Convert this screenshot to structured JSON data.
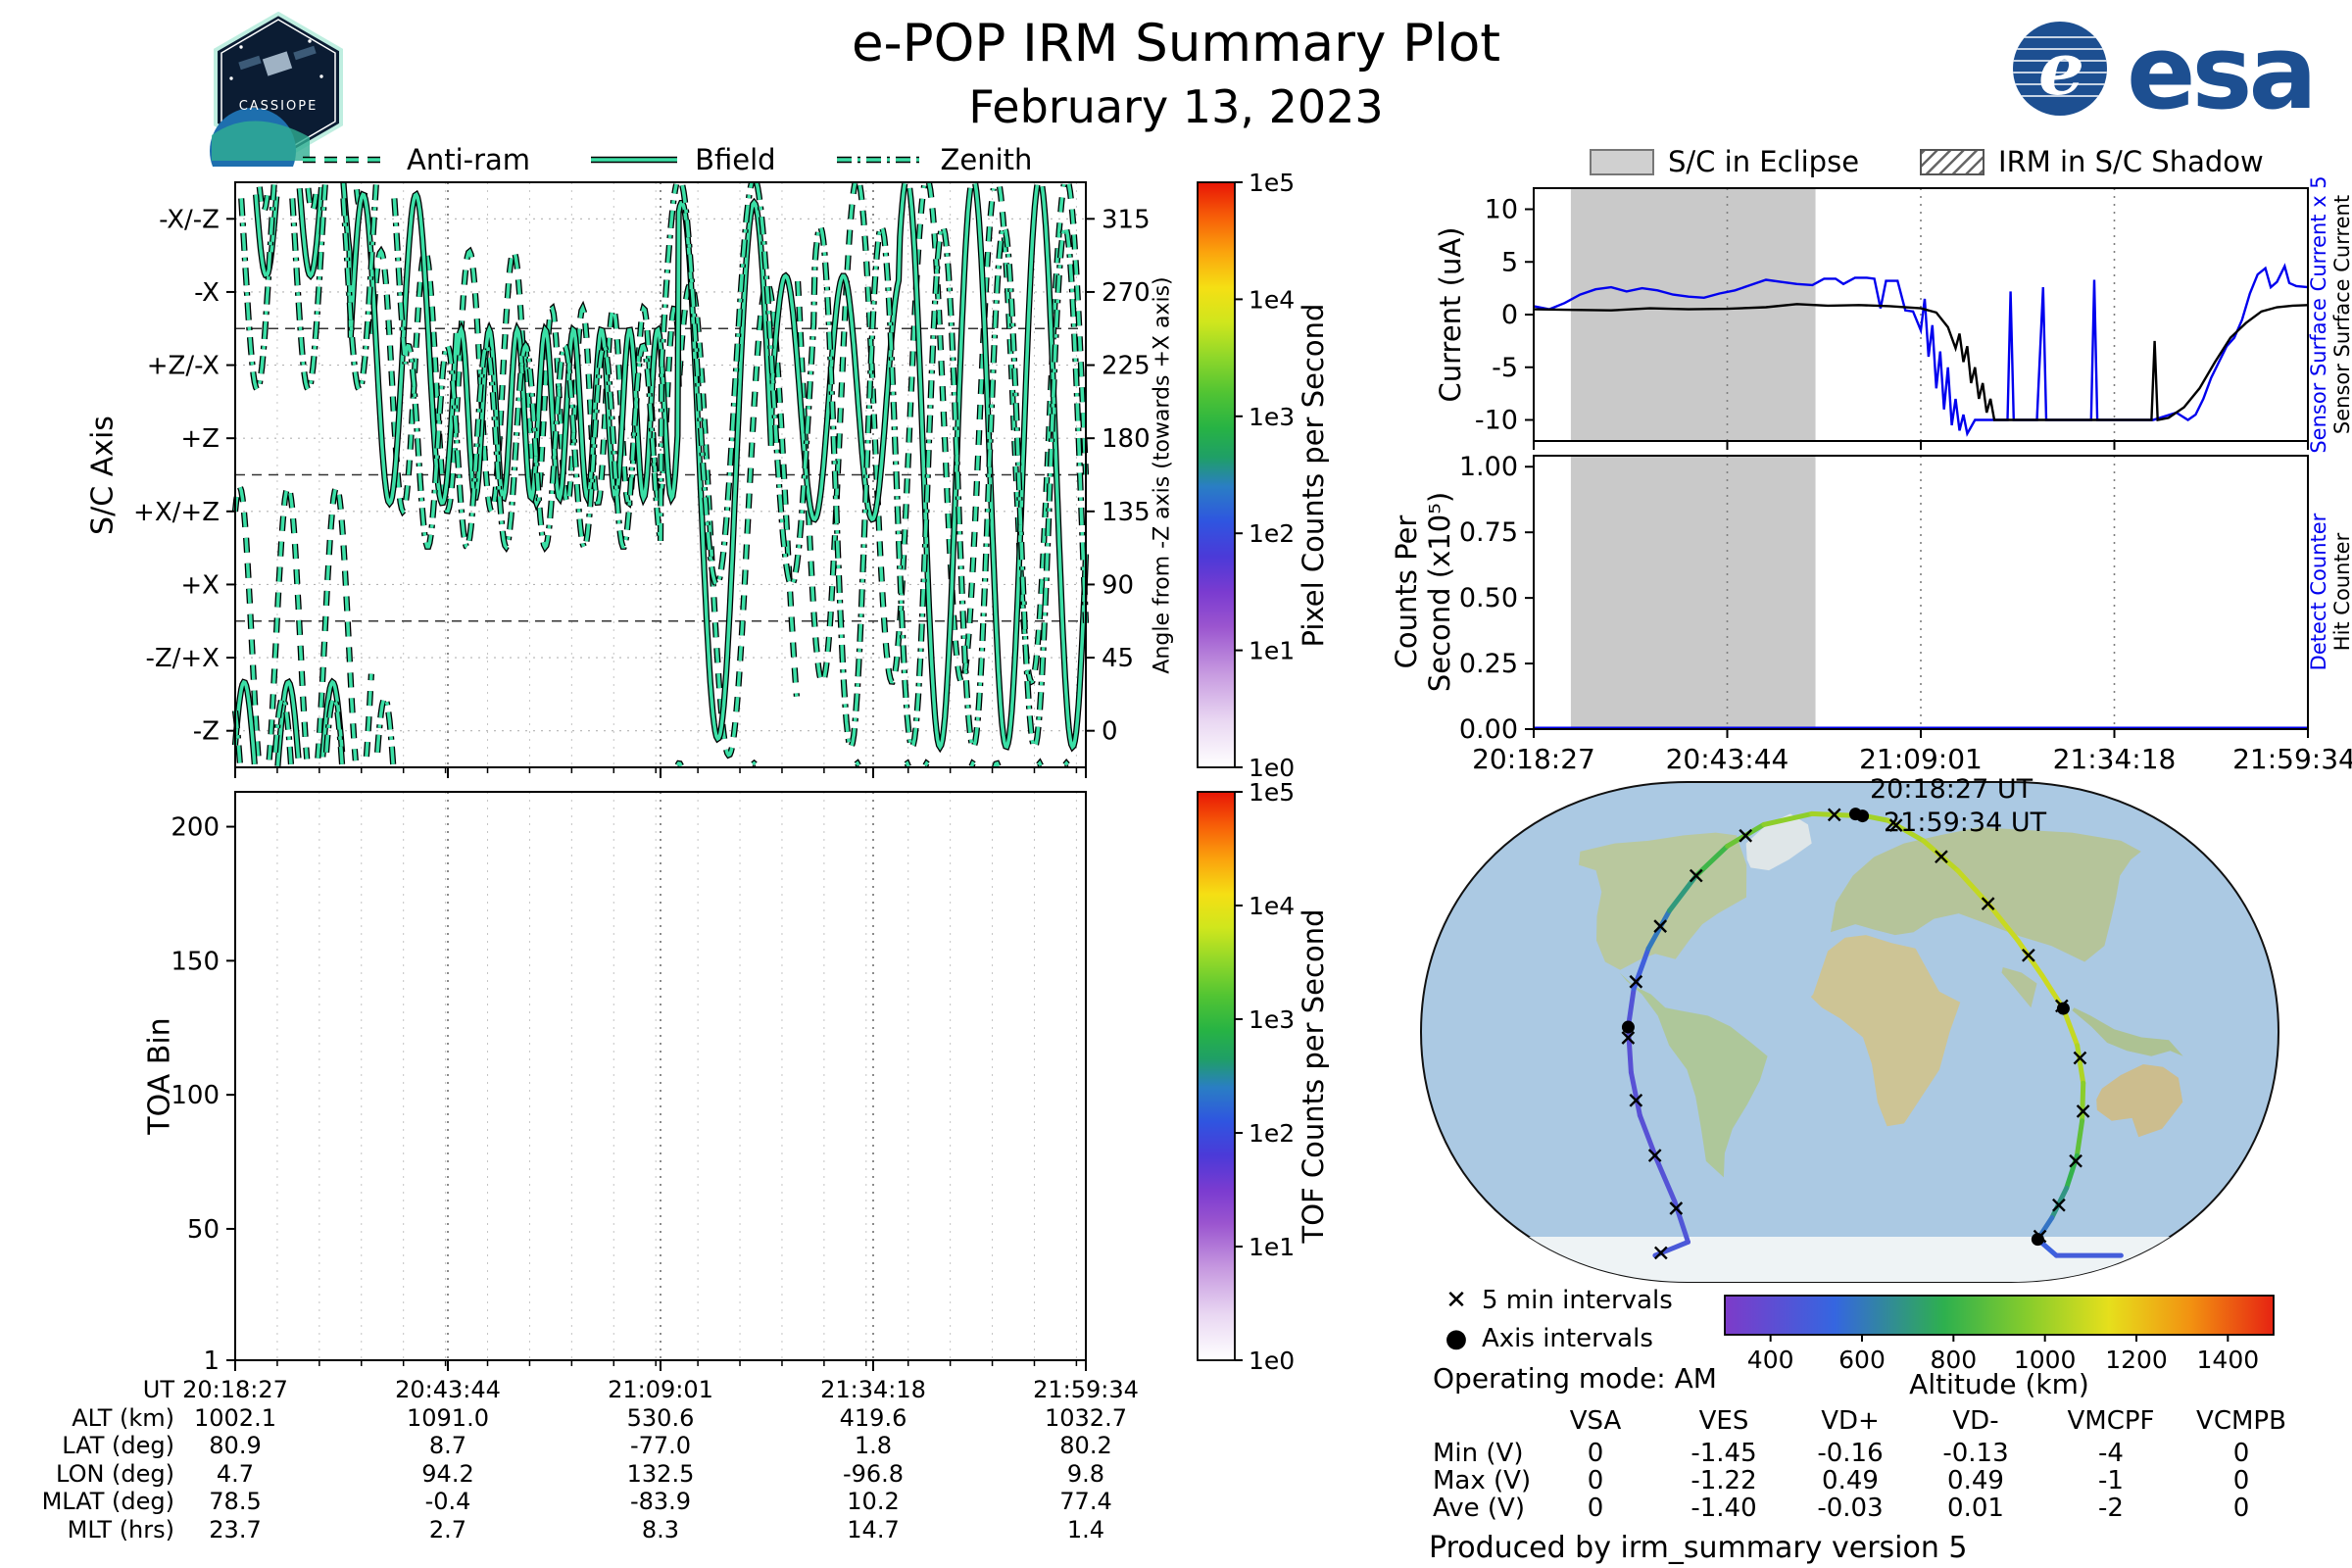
{
  "header": {
    "title": "e-POP IRM Summary Plot",
    "date": "February 13, 2023",
    "esa_wordmark": "esa",
    "badge_text": "CASSIOPE"
  },
  "icons": {
    "x_marker": "✕",
    "dot_marker": "●"
  },
  "timeline": {
    "xticks": [
      "20:18:27",
      "20:43:44",
      "21:09:01",
      "21:34:18",
      "21:59:34"
    ],
    "five_min_frac": 0.049447
  },
  "eclipse_legend": {
    "eclipse_label": "S/C in Eclipse",
    "shadow_label": "IRM in S/C Shadow"
  },
  "colorbars": {
    "pixel_label": "Pixel Counts per Second",
    "tof_label": "TOF Counts per Second",
    "ticks": [
      "1e5",
      "1e4",
      "1e3",
      "1e2",
      "1e1",
      "1e0"
    ]
  },
  "chart_data": [
    {
      "id": "sc_axis_attitude",
      "type": "line",
      "ylabel": "S/C Axis",
      "yticks": [
        "-X/-Z",
        "-X",
        "+Z/-X",
        "+Z",
        "+X/+Z",
        "+X",
        "-Z/+X",
        "-Z"
      ],
      "right_label": "Angle from -Z axis (towards +X axis)",
      "right_ticks": [
        315,
        270,
        225,
        180,
        135,
        90,
        45,
        0
      ],
      "ylim": [
        -22.5,
        337.5
      ],
      "xticks": [
        "20:18:27",
        "20:43:44",
        "21:09:01",
        "21:34:18",
        "21:59:34"
      ],
      "line_color": "#3bdfa6",
      "legend": [
        {
          "label": "Anti-ram",
          "style": "dashed"
        },
        {
          "label": "Bfield",
          "style": "solid"
        },
        {
          "label": "Zenith",
          "style": "dashdot"
        }
      ],
      "series": [
        {
          "name": "Anti-ram",
          "style": "dashed",
          "segments": [
            [
              0,
              0.16,
              55,
              95,
              0.057,
              1.0
            ],
            [
              0.16,
              0.34,
              215,
              80,
              0.052,
              0.2
            ],
            [
              0.34,
              0.52,
              200,
              60,
              0.036,
              2.2
            ],
            [
              0.52,
              0.66,
              130,
              145,
              0.09,
              0.5
            ],
            [
              0.66,
              1.0,
              185,
              155,
              0.082,
              2.4
            ]
          ]
        },
        {
          "name": "Bfield",
          "style": "solid",
          "segments": [
            [
              0,
              0.135,
              335,
              55,
              0.052,
              0.3
            ],
            [
              0.135,
              0.26,
              235,
              95,
              0.062,
              0
            ],
            [
              0.26,
              0.52,
              195,
              52,
              0.033,
              0.5
            ],
            [
              0.52,
              0.63,
              160,
              165,
              0.085,
              1.2
            ],
            [
              0.63,
              0.78,
              205,
              75,
              0.068,
              0
            ],
            [
              0.78,
              1.0,
              165,
              175,
              0.078,
              0.8
            ]
          ]
        },
        {
          "name": "Zenith",
          "style": "dashdot",
          "segments": [
            [
              0,
              0.2,
              295,
              85,
              0.06,
              2.0
            ],
            [
              0.2,
              0.5,
              175,
              62,
              0.046,
              1.1
            ],
            [
              0.5,
              0.68,
              215,
              125,
              0.088,
              0
            ],
            [
              0.68,
              1.0,
              150,
              160,
              0.072,
              0.9
            ]
          ]
        }
      ]
    },
    {
      "id": "toa_bin",
      "type": "heatmap",
      "ylabel": "TOA Bin",
      "yticks": [
        200,
        150,
        100,
        50,
        1
      ],
      "ylim": [
        1,
        213
      ],
      "values": "empty"
    },
    {
      "id": "sensor_current",
      "type": "line",
      "ylabel": "Current (uA)",
      "yticks": [
        10,
        5,
        0,
        -5,
        -10
      ],
      "ylim": [
        -12,
        12
      ],
      "right_labels": {
        "blue": "Sensor Surface Current x 5",
        "black": "Sensor Surface Current"
      },
      "eclipse_span": [
        0.048,
        0.364
      ],
      "series": [
        {
          "name": "Sensor Surface Current x 5",
          "color": "#0000ee",
          "points": [
            [
              0,
              0.8
            ],
            [
              0.02,
              0.5
            ],
            [
              0.04,
              1.1
            ],
            [
              0.06,
              1.9
            ],
            [
              0.08,
              2.4
            ],
            [
              0.1,
              2.6
            ],
            [
              0.12,
              2.2
            ],
            [
              0.14,
              2.5
            ],
            [
              0.16,
              2.3
            ],
            [
              0.18,
              1.9
            ],
            [
              0.2,
              1.7
            ],
            [
              0.22,
              1.6
            ],
            [
              0.24,
              2
            ],
            [
              0.26,
              2.3
            ],
            [
              0.28,
              2.8
            ],
            [
              0.3,
              3.3
            ],
            [
              0.32,
              3.1
            ],
            [
              0.34,
              2.9
            ],
            [
              0.36,
              2.8
            ],
            [
              0.375,
              3.4
            ],
            [
              0.39,
              3.4
            ],
            [
              0.4,
              2.9
            ],
            [
              0.415,
              3.5
            ],
            [
              0.43,
              3.5
            ],
            [
              0.44,
              3.4
            ],
            [
              0.448,
              0.6
            ],
            [
              0.455,
              3.2
            ],
            [
              0.47,
              3.2
            ],
            [
              0.48,
              0.4
            ],
            [
              0.49,
              0.3
            ],
            [
              0.5,
              -1.5
            ],
            [
              0.505,
              1.5
            ],
            [
              0.51,
              -4
            ],
            [
              0.515,
              -1
            ],
            [
              0.52,
              -7
            ],
            [
              0.525,
              -3.5
            ],
            [
              0.53,
              -9
            ],
            [
              0.535,
              -5
            ],
            [
              0.54,
              -10.5
            ],
            [
              0.545,
              -8
            ],
            [
              0.55,
              -11
            ],
            [
              0.555,
              -9.5
            ],
            [
              0.56,
              -11.3
            ],
            [
              0.57,
              -10
            ],
            [
              0.6,
              -10
            ],
            [
              0.612,
              -10
            ],
            [
              0.616,
              2.2
            ],
            [
              0.62,
              -10
            ],
            [
              0.65,
              -10
            ],
            [
              0.658,
              2.6
            ],
            [
              0.662,
              -10
            ],
            [
              0.7,
              -10
            ],
            [
              0.72,
              -10
            ],
            [
              0.724,
              3.3
            ],
            [
              0.728,
              -10
            ],
            [
              0.76,
              -10
            ],
            [
              0.8,
              -10
            ],
            [
              0.83,
              -9.3
            ],
            [
              0.845,
              -10
            ],
            [
              0.855,
              -9.5
            ],
            [
              0.865,
              -8
            ],
            [
              0.875,
              -6
            ],
            [
              0.885,
              -4.5
            ],
            [
              0.895,
              -3
            ],
            [
              0.905,
              -2.2
            ],
            [
              0.915,
              -0.5
            ],
            [
              0.925,
              2
            ],
            [
              0.935,
              3.8
            ],
            [
              0.945,
              4.4
            ],
            [
              0.952,
              2.6
            ],
            [
              0.96,
              3.1
            ],
            [
              0.97,
              4.6
            ],
            [
              0.976,
              3
            ],
            [
              0.985,
              2.7
            ],
            [
              1,
              2.6
            ]
          ]
        },
        {
          "name": "Sensor Surface Current",
          "color": "#000000",
          "points": [
            [
              0,
              0.5
            ],
            [
              0.05,
              0.45
            ],
            [
              0.1,
              0.4
            ],
            [
              0.15,
              0.6
            ],
            [
              0.2,
              0.5
            ],
            [
              0.25,
              0.55
            ],
            [
              0.3,
              0.7
            ],
            [
              0.34,
              1
            ],
            [
              0.38,
              0.85
            ],
            [
              0.42,
              0.9
            ],
            [
              0.46,
              0.8
            ],
            [
              0.5,
              0.6
            ],
            [
              0.52,
              0.2
            ],
            [
              0.535,
              -1.2
            ],
            [
              0.545,
              -3.2
            ],
            [
              0.55,
              -1.8
            ],
            [
              0.555,
              -4.5
            ],
            [
              0.56,
              -3
            ],
            [
              0.565,
              -6.5
            ],
            [
              0.57,
              -5
            ],
            [
              0.575,
              -8
            ],
            [
              0.58,
              -6.5
            ],
            [
              0.585,
              -9.3
            ],
            [
              0.59,
              -8
            ],
            [
              0.595,
              -10
            ],
            [
              0.62,
              -10
            ],
            [
              0.66,
              -10
            ],
            [
              0.7,
              -10
            ],
            [
              0.74,
              -10
            ],
            [
              0.78,
              -10
            ],
            [
              0.798,
              -10
            ],
            [
              0.802,
              -2.5
            ],
            [
              0.806,
              -10
            ],
            [
              0.82,
              -9.8
            ],
            [
              0.84,
              -8.8
            ],
            [
              0.86,
              -7
            ],
            [
              0.88,
              -4.5
            ],
            [
              0.9,
              -2.2
            ],
            [
              0.92,
              -0.8
            ],
            [
              0.94,
              0.3
            ],
            [
              0.96,
              0.7
            ],
            [
              0.98,
              0.85
            ],
            [
              1,
              0.9
            ]
          ]
        }
      ]
    },
    {
      "id": "detect_hit_counters",
      "type": "line",
      "ylabel_line1": "Counts Per",
      "ylabel_line2": "Second (x10⁵)",
      "yticks": [
        "1.00",
        "0.75",
        "0.50",
        "0.25",
        "0.00"
      ],
      "ylim": [
        0,
        1.042
      ],
      "right_labels": {
        "blue": "Detect Counter",
        "black": "Hit Counter"
      },
      "eclipse_span": [
        0.048,
        0.364
      ],
      "series": [
        {
          "name": "Detect Counter",
          "color": "#0000ee",
          "points": [
            [
              0,
              0
            ],
            [
              1,
              0
            ]
          ]
        }
      ]
    },
    {
      "id": "ground_track",
      "type": "map",
      "start_label": "20:18:27 UT",
      "end_label": "21:59:34 UT",
      "operating_mode": "Operating mode: AM",
      "legend": {
        "x_label": "5 min intervals",
        "dot_label": "Axis intervals"
      },
      "alt_bar": {
        "label": "Altitude (km)",
        "ticks": [
          400,
          600,
          800,
          1000,
          1200,
          1400
        ],
        "range": [
          300,
          1500
        ]
      },
      "axis_dot_ts": [
        0,
        0.25,
        0.5,
        0.75,
        1
      ],
      "track": [
        [
          0,
          4.7,
          80.9,
          1002
        ],
        [
          0.04,
          28,
          78.5,
          1025
        ],
        [
          0.08,
          48,
          71,
          1050
        ],
        [
          0.115,
          62,
          60,
          1068
        ],
        [
          0.15,
          72,
          47,
          1080
        ],
        [
          0.185,
          80,
          34,
          1088
        ],
        [
          0.215,
          87,
          21,
          1092
        ],
        [
          0.25,
          94.2,
          8.7,
          1091
        ],
        [
          0.285,
          100,
          -5,
          1065
        ],
        [
          0.32,
          105,
          -19,
          1010
        ],
        [
          0.355,
          110,
          -33,
          930
        ],
        [
          0.39,
          116,
          -46,
          840
        ],
        [
          0.425,
          122,
          -58,
          745
        ],
        [
          0.46,
          128,
          -69,
          640
        ],
        [
          0.5,
          132.5,
          -77,
          531
        ],
        [
          0.52,
          160,
          -83,
          500
        ],
        [
          0.54,
          -150,
          -83,
          480
        ],
        [
          0.56,
          -115,
          -78,
          462
        ],
        [
          0.6,
          -103,
          -63,
          440
        ],
        [
          0.64,
          -99,
          -47,
          428
        ],
        [
          0.68,
          -98,
          -31,
          421
        ],
        [
          0.715,
          -97,
          -15,
          419
        ],
        [
          0.75,
          -96.8,
          1.8,
          420
        ],
        [
          0.785,
          -96,
          16,
          460
        ],
        [
          0.82,
          -94,
          31,
          545
        ],
        [
          0.855,
          -91,
          45,
          650
        ],
        [
          0.89,
          -86,
          58,
          760
        ],
        [
          0.925,
          -77,
          69,
          865
        ],
        [
          0.955,
          -60,
          77,
          950
        ],
        [
          0.98,
          -28,
          81,
          1000
        ],
        [
          1,
          9.8,
          80.2,
          1033
        ]
      ]
    }
  ],
  "ephemeris_table": {
    "rows": [
      {
        "label": "UT",
        "values": [
          "20:18:27",
          "20:43:44",
          "21:09:01",
          "21:34:18",
          "21:59:34"
        ]
      },
      {
        "label": "ALT (km)",
        "values": [
          "1002.1",
          "1091.0",
          "530.6",
          "419.6",
          "1032.7"
        ]
      },
      {
        "label": "LAT (deg)",
        "values": [
          "80.9",
          "8.7",
          "-77.0",
          "1.8",
          "80.2"
        ]
      },
      {
        "label": "LON (deg)",
        "values": [
          "4.7",
          "94.2",
          "132.5",
          "-96.8",
          "9.8"
        ]
      },
      {
        "label": "MLAT (deg)",
        "values": [
          "78.5",
          "-0.4",
          "-83.9",
          "10.2",
          "77.4"
        ]
      },
      {
        "label": "MLT (hrs)",
        "values": [
          "23.7",
          "2.7",
          "8.3",
          "14.7",
          "1.4"
        ]
      }
    ]
  },
  "voltage_table": {
    "columns": [
      "VSA",
      "VES",
      "VD+",
      "VD-",
      "VMCPF",
      "VCMPB"
    ],
    "rows": [
      {
        "label": "Min (V)",
        "values": [
          "0",
          "-1.45",
          "-0.16",
          "-0.13",
          "-4",
          "0"
        ]
      },
      {
        "label": "Max (V)",
        "values": [
          "0",
          "-1.22",
          "0.49",
          "0.49",
          "-1",
          "0"
        ]
      },
      {
        "label": "Ave (V)",
        "values": [
          "0",
          "-1.40",
          "-0.03",
          "0.01",
          "-2",
          "0"
        ]
      }
    ]
  },
  "footer": "Produced by irm_summary version 5"
}
